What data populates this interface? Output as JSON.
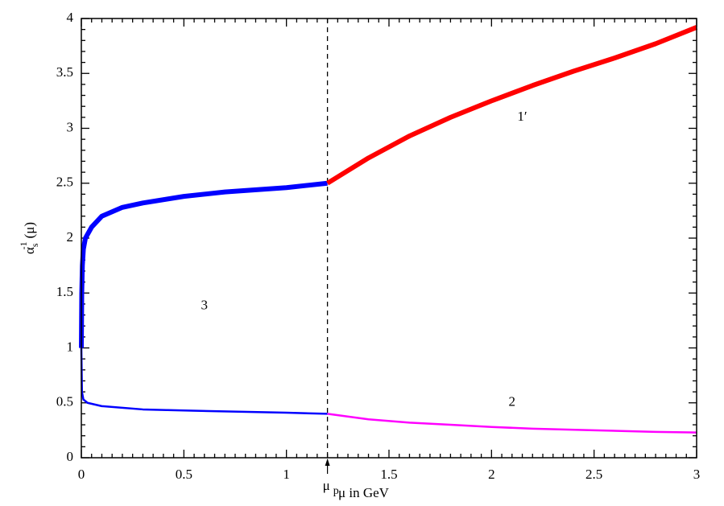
{
  "chart_data": {
    "type": "line",
    "x_label": "μ in GeV",
    "y_label": {
      "base": "α",
      "sub": "s",
      "sup": "-1",
      "rest": "(μ)"
    },
    "xlim": [
      0,
      3
    ],
    "ylim": [
      0,
      4
    ],
    "xticks": [
      0,
      0.5,
      1,
      1.5,
      2,
      2.5,
      3
    ],
    "yticks": [
      0,
      0.5,
      1,
      1.5,
      2,
      2.5,
      3,
      3.5,
      4
    ],
    "vline": {
      "x": 1.2,
      "label": "μ",
      "label_sub": "p"
    },
    "series": [
      {
        "color": "#0000ff",
        "width": 6,
        "x": [
          0,
          0.002,
          0.005,
          0.01,
          0.02,
          0.05,
          0.1,
          0.2,
          0.3,
          0.5,
          0.7,
          1,
          1.2
        ],
        "values": [
          1,
          1.5,
          1.75,
          1.9,
          2.0,
          2.1,
          2.2,
          2.28,
          2.32,
          2.38,
          2.42,
          2.46,
          2.5
        ]
      },
      {
        "color": "#ff0000",
        "width": 6,
        "x": [
          1.2,
          1.4,
          1.6,
          1.8,
          2,
          2.2,
          2.4,
          2.6,
          2.8,
          3
        ],
        "values": [
          2.5,
          2.73,
          2.93,
          3.1,
          3.25,
          3.39,
          3.52,
          3.64,
          3.77,
          3.92
        ]
      },
      {
        "color": "#0000ff",
        "width": 2.5,
        "x": [
          0,
          0.003,
          0.01,
          0.03,
          0.1,
          0.3,
          0.5,
          1,
          1.2
        ],
        "values": [
          1,
          0.6,
          0.53,
          0.5,
          0.47,
          0.44,
          0.43,
          0.41,
          0.4
        ]
      },
      {
        "color": "#ff00ff",
        "width": 2.5,
        "x": [
          1.2,
          1.4,
          1.6,
          1.8,
          2,
          2.2,
          2.5,
          2.8,
          3
        ],
        "values": [
          0.4,
          0.35,
          0.32,
          0.3,
          0.28,
          0.265,
          0.25,
          0.235,
          0.23
        ]
      }
    ],
    "annotations": [
      {
        "text": "1′",
        "x": 2.15,
        "y": 3.1
      },
      {
        "text": "2",
        "x": 2.1,
        "y": 0.5
      },
      {
        "text": "3",
        "x": 0.6,
        "y": 1.38
      }
    ]
  }
}
